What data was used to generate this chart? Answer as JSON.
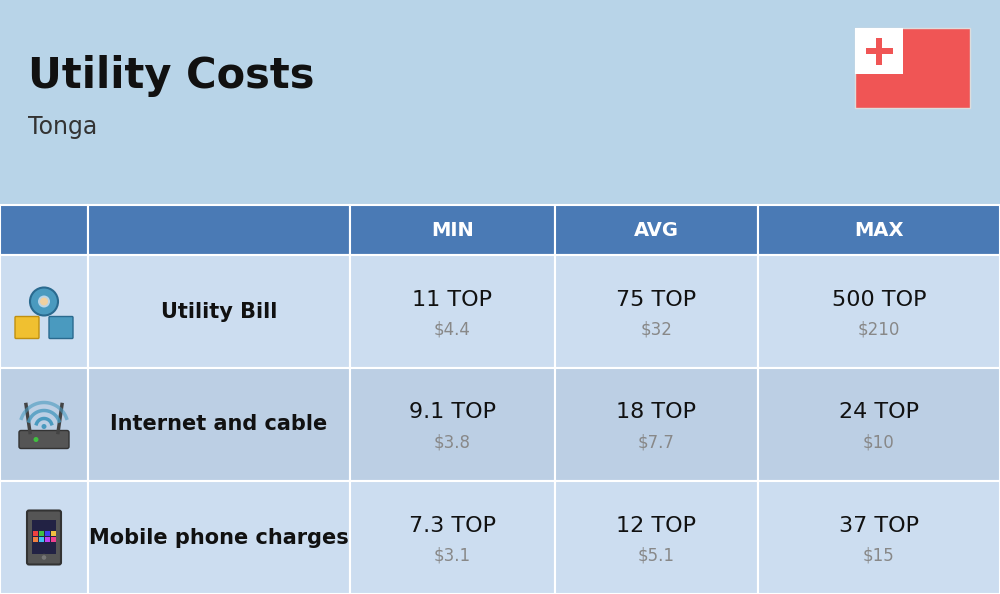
{
  "title": "Utility Costs",
  "subtitle": "Tonga",
  "background_color": "#b8d4e8",
  "header_color": "#4a7ab5",
  "header_text_color": "#ffffff",
  "row_color_light": "#ccddf0",
  "row_color_dark": "#bccfe4",
  "col_headers": [
    "MIN",
    "AVG",
    "MAX"
  ],
  "rows": [
    {
      "label": "Utility Bill",
      "min_top": "11 TOP",
      "min_usd": "$4.4",
      "avg_top": "75 TOP",
      "avg_usd": "$32",
      "max_top": "500 TOP",
      "max_usd": "$210",
      "icon": "utility"
    },
    {
      "label": "Internet and cable",
      "min_top": "9.1 TOP",
      "min_usd": "$3.8",
      "avg_top": "18 TOP",
      "avg_usd": "$7.7",
      "max_top": "24 TOP",
      "max_usd": "$10",
      "icon": "internet"
    },
    {
      "label": "Mobile phone charges",
      "min_top": "7.3 TOP",
      "min_usd": "$3.1",
      "avg_top": "12 TOP",
      "avg_usd": "$5.1",
      "max_top": "37 TOP",
      "max_usd": "$15",
      "icon": "mobile"
    }
  ],
  "title_fontsize": 30,
  "subtitle_fontsize": 17,
  "header_fontsize": 14,
  "value_fontsize": 16,
  "usd_fontsize": 12,
  "label_fontsize": 15,
  "flag_red": "#f05555",
  "flag_white": "#ffffff"
}
